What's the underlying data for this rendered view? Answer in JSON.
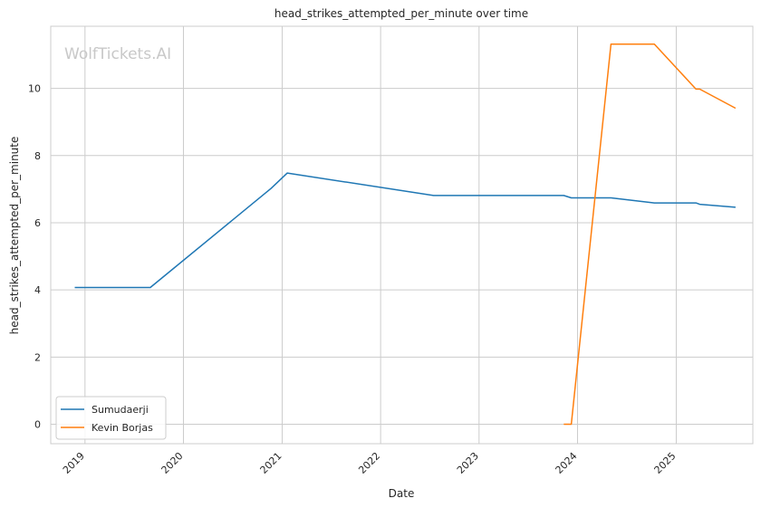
{
  "chart_data": {
    "type": "line",
    "title": "head_strikes_attempted_per_minute over time",
    "xlabel": "Date",
    "ylabel": "head_strikes_attempted_per_minute",
    "x_ticks": [
      "2019",
      "2020",
      "2021",
      "2022",
      "2023",
      "2024",
      "2025"
    ],
    "y_ticks": [
      0,
      2,
      4,
      6,
      8,
      10
    ],
    "xlim": [
      "2018-08-27",
      "2025-10-12"
    ],
    "ylim": [
      -0.58,
      11.85
    ],
    "grid": true,
    "legend_position": "lower-left",
    "watermark": "WolfTickets.AI",
    "colors": {
      "Sumudaerji": "#1f77b4",
      "Kevin Borjas": "#ff7f0e"
    },
    "series": [
      {
        "name": "Sumudaerji",
        "points": [
          [
            "2018-11-24",
            4.07
          ],
          [
            "2019-08-31",
            4.07
          ],
          [
            "2020-11-21",
            7.02
          ],
          [
            "2021-01-20",
            7.48
          ],
          [
            "2022-07-16",
            6.81
          ],
          [
            "2023-11-11",
            6.81
          ],
          [
            "2023-12-09",
            6.74
          ],
          [
            "2024-05-04",
            6.74
          ],
          [
            "2024-10-12",
            6.59
          ],
          [
            "2025-03-15",
            6.59
          ],
          [
            "2025-03-29",
            6.55
          ],
          [
            "2025-08-09",
            6.46
          ]
        ]
      },
      {
        "name": "Kevin Borjas",
        "points": [
          [
            "2023-11-11",
            0.0
          ],
          [
            "2023-12-09",
            0.0
          ],
          [
            "2024-05-04",
            11.32
          ],
          [
            "2024-10-12",
            11.32
          ],
          [
            "2025-03-15",
            9.98
          ],
          [
            "2025-03-29",
            9.98
          ],
          [
            "2025-08-09",
            9.41
          ]
        ]
      }
    ]
  }
}
